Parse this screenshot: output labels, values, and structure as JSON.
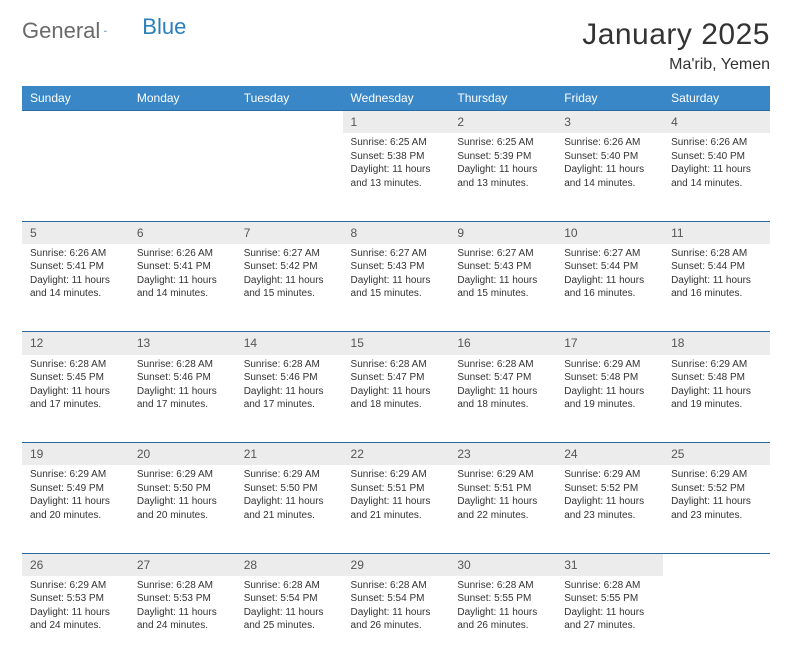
{
  "brand": {
    "text1": "General",
    "text2": "Blue",
    "accent_color": "#2a7fba"
  },
  "title": "January 2025",
  "location": "Ma'rib, Yemen",
  "header_bg": "#3a87c7",
  "daynum_bg": "#ececec",
  "row_border": "#2a6aa0",
  "weekdays": [
    "Sunday",
    "Monday",
    "Tuesday",
    "Wednesday",
    "Thursday",
    "Friday",
    "Saturday"
  ],
  "weeks": [
    [
      null,
      null,
      null,
      {
        "n": "1",
        "sr": "6:25 AM",
        "ss": "5:38 PM",
        "dl": "11 hours and 13 minutes."
      },
      {
        "n": "2",
        "sr": "6:25 AM",
        "ss": "5:39 PM",
        "dl": "11 hours and 13 minutes."
      },
      {
        "n": "3",
        "sr": "6:26 AM",
        "ss": "5:40 PM",
        "dl": "11 hours and 14 minutes."
      },
      {
        "n": "4",
        "sr": "6:26 AM",
        "ss": "5:40 PM",
        "dl": "11 hours and 14 minutes."
      }
    ],
    [
      {
        "n": "5",
        "sr": "6:26 AM",
        "ss": "5:41 PM",
        "dl": "11 hours and 14 minutes."
      },
      {
        "n": "6",
        "sr": "6:26 AM",
        "ss": "5:41 PM",
        "dl": "11 hours and 14 minutes."
      },
      {
        "n": "7",
        "sr": "6:27 AM",
        "ss": "5:42 PM",
        "dl": "11 hours and 15 minutes."
      },
      {
        "n": "8",
        "sr": "6:27 AM",
        "ss": "5:43 PM",
        "dl": "11 hours and 15 minutes."
      },
      {
        "n": "9",
        "sr": "6:27 AM",
        "ss": "5:43 PM",
        "dl": "11 hours and 15 minutes."
      },
      {
        "n": "10",
        "sr": "6:27 AM",
        "ss": "5:44 PM",
        "dl": "11 hours and 16 minutes."
      },
      {
        "n": "11",
        "sr": "6:28 AM",
        "ss": "5:44 PM",
        "dl": "11 hours and 16 minutes."
      }
    ],
    [
      {
        "n": "12",
        "sr": "6:28 AM",
        "ss": "5:45 PM",
        "dl": "11 hours and 17 minutes."
      },
      {
        "n": "13",
        "sr": "6:28 AM",
        "ss": "5:46 PM",
        "dl": "11 hours and 17 minutes."
      },
      {
        "n": "14",
        "sr": "6:28 AM",
        "ss": "5:46 PM",
        "dl": "11 hours and 17 minutes."
      },
      {
        "n": "15",
        "sr": "6:28 AM",
        "ss": "5:47 PM",
        "dl": "11 hours and 18 minutes."
      },
      {
        "n": "16",
        "sr": "6:28 AM",
        "ss": "5:47 PM",
        "dl": "11 hours and 18 minutes."
      },
      {
        "n": "17",
        "sr": "6:29 AM",
        "ss": "5:48 PM",
        "dl": "11 hours and 19 minutes."
      },
      {
        "n": "18",
        "sr": "6:29 AM",
        "ss": "5:48 PM",
        "dl": "11 hours and 19 minutes."
      }
    ],
    [
      {
        "n": "19",
        "sr": "6:29 AM",
        "ss": "5:49 PM",
        "dl": "11 hours and 20 minutes."
      },
      {
        "n": "20",
        "sr": "6:29 AM",
        "ss": "5:50 PM",
        "dl": "11 hours and 20 minutes."
      },
      {
        "n": "21",
        "sr": "6:29 AM",
        "ss": "5:50 PM",
        "dl": "11 hours and 21 minutes."
      },
      {
        "n": "22",
        "sr": "6:29 AM",
        "ss": "5:51 PM",
        "dl": "11 hours and 21 minutes."
      },
      {
        "n": "23",
        "sr": "6:29 AM",
        "ss": "5:51 PM",
        "dl": "11 hours and 22 minutes."
      },
      {
        "n": "24",
        "sr": "6:29 AM",
        "ss": "5:52 PM",
        "dl": "11 hours and 23 minutes."
      },
      {
        "n": "25",
        "sr": "6:29 AM",
        "ss": "5:52 PM",
        "dl": "11 hours and 23 minutes."
      }
    ],
    [
      {
        "n": "26",
        "sr": "6:29 AM",
        "ss": "5:53 PM",
        "dl": "11 hours and 24 minutes."
      },
      {
        "n": "27",
        "sr": "6:28 AM",
        "ss": "5:53 PM",
        "dl": "11 hours and 24 minutes."
      },
      {
        "n": "28",
        "sr": "6:28 AM",
        "ss": "5:54 PM",
        "dl": "11 hours and 25 minutes."
      },
      {
        "n": "29",
        "sr": "6:28 AM",
        "ss": "5:54 PM",
        "dl": "11 hours and 26 minutes."
      },
      {
        "n": "30",
        "sr": "6:28 AM",
        "ss": "5:55 PM",
        "dl": "11 hours and 26 minutes."
      },
      {
        "n": "31",
        "sr": "6:28 AM",
        "ss": "5:55 PM",
        "dl": "11 hours and 27 minutes."
      },
      null
    ]
  ],
  "labels": {
    "sunrise": "Sunrise:",
    "sunset": "Sunset:",
    "daylight": "Daylight:"
  }
}
